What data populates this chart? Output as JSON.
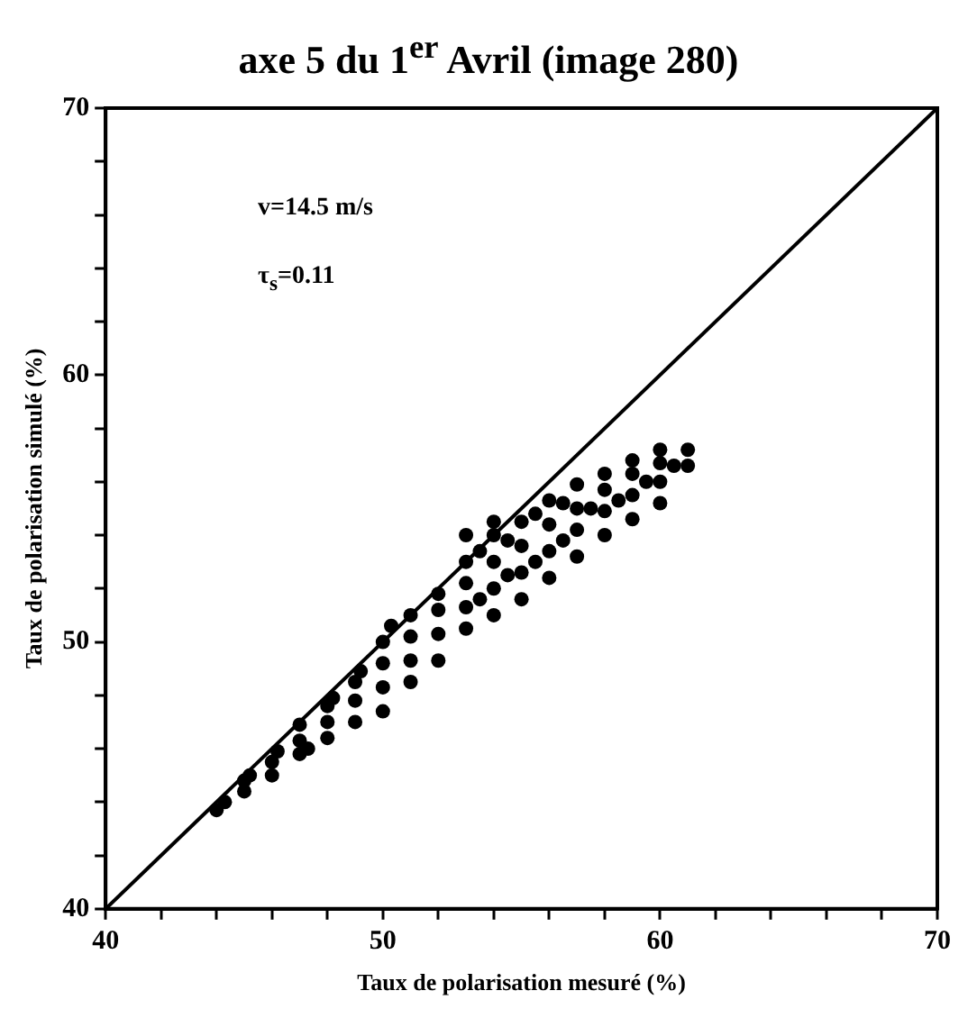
{
  "chart_data": {
    "type": "scatter",
    "title": "axe 5 du 1$^{er}$ Avril (image 280)",
    "xlabel": "Taux de polarisation mesuré (%)",
    "ylabel": "Taux de polarisation simulé (%)",
    "annotations": [
      "v=14.5 m/s",
      "τ$_{s}$=0.11"
    ],
    "xlim": [
      40,
      70
    ],
    "ylim": [
      40,
      70
    ],
    "xticks": [
      40,
      {
        "value": 42,
        "label": null
      },
      {
        "value": 44,
        "label": null
      },
      {
        "value": 46,
        "label": null
      },
      {
        "value": 48,
        "label": null
      },
      50,
      {
        "value": 52,
        "label": null
      },
      {
        "value": 54,
        "label": null
      },
      {
        "value": 56,
        "label": null
      },
      {
        "value": 58,
        "label": null
      },
      60,
      {
        "value": 62,
        "label": null
      },
      {
        "value": 64,
        "label": null
      },
      {
        "value": 66,
        "label": null
      },
      {
        "value": 68,
        "label": null
      },
      70
    ],
    "yticks": [
      40,
      {
        "value": 42,
        "label": null
      },
      {
        "value": 44,
        "label": null
      },
      {
        "value": 46,
        "label": null
      },
      {
        "value": 48,
        "label": null
      },
      50,
      {
        "value": 52,
        "label": null
      },
      {
        "value": 54,
        "label": null
      },
      {
        "value": 56,
        "label": null
      },
      {
        "value": 58,
        "label": null
      },
      60,
      {
        "value": 62,
        "label": null
      },
      {
        "value": 64,
        "label": null
      },
      {
        "value": 66,
        "label": null
      },
      {
        "value": 68,
        "label": null
      },
      70
    ],
    "grid": false,
    "legend": false,
    "marker": "circle",
    "series": [
      {
        "type": "scatter",
        "color": "#000000",
        "x": [
          44,
          44.3,
          45,
          45,
          45.2,
          46,
          46,
          46.2,
          47,
          47,
          47,
          47.3,
          48,
          48,
          48,
          48.2,
          49,
          49,
          49,
          49.2,
          50,
          50,
          50,
          50,
          50.3,
          51,
          51,
          51,
          51,
          52,
          52,
          52,
          52,
          53,
          53,
          53,
          53,
          53,
          53.5,
          53.5,
          54,
          54,
          54,
          54,
          54,
          54.5,
          54.5,
          55,
          55,
          55,
          55,
          55.5,
          55.5,
          56,
          56,
          56,
          56,
          56.5,
          56.5,
          57,
          57,
          57,
          57,
          57.5,
          58,
          58,
          58,
          58,
          58.5,
          59,
          59,
          59,
          59,
          59.5,
          60,
          60,
          60,
          60,
          60.5,
          61,
          61
        ],
        "values": [
          43.7,
          44,
          44.4,
          44.8,
          45,
          45,
          45.5,
          45.9,
          45.8,
          46.3,
          46.9,
          46,
          46.4,
          47,
          47.6,
          47.9,
          47,
          47.8,
          48.5,
          48.9,
          47.4,
          48.3,
          49.2,
          50,
          50.6,
          48.5,
          49.3,
          50.2,
          51,
          49.3,
          50.3,
          51.2,
          51.8,
          50.5,
          51.3,
          52.2,
          53,
          54,
          51.6,
          53.4,
          51,
          52,
          53,
          54,
          54.5,
          52.5,
          53.8,
          51.6,
          52.6,
          53.6,
          54.5,
          53,
          54.8,
          52.4,
          53.4,
          54.4,
          55.3,
          53.8,
          55.2,
          53.2,
          54.2,
          55,
          55.9,
          55,
          54,
          54.9,
          55.7,
          56.3,
          55.3,
          54.6,
          55.5,
          56.3,
          56.8,
          56,
          55.2,
          56,
          56.7,
          57.2,
          56.6,
          56.6,
          57.2
        ]
      },
      {
        "type": "line",
        "color": "#000000",
        "marker": "none",
        "x": [
          40,
          70
        ],
        "values": [
          40,
          70
        ]
      }
    ]
  }
}
